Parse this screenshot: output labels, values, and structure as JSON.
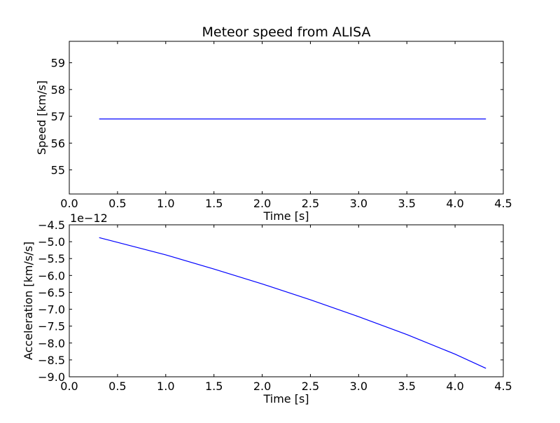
{
  "chart_data": [
    {
      "type": "line",
      "title": "Meteor speed from  ALISA",
      "xlabel": "Time [s]",
      "ylabel": "Speed [km/s]",
      "xlim": [
        0.0,
        4.5
      ],
      "ylim": [
        54.1,
        59.8
      ],
      "x_ticks": [
        "0.0",
        "0.5",
        "1.0",
        "1.5",
        "2.0",
        "2.5",
        "3.0",
        "3.5",
        "4.0",
        "4.5"
      ],
      "y_ticks": [
        "55",
        "56",
        "57",
        "58",
        "59"
      ],
      "grid": false,
      "series": [
        {
          "color": "#0000ff",
          "x": [
            0.31,
            4.32
          ],
          "values": [
            56.9,
            56.9
          ]
        }
      ]
    },
    {
      "type": "line",
      "title": "",
      "xlabel": "Time [s]",
      "ylabel": "Acceleration [km/s/s]",
      "offset_label": "1e−12",
      "xlim": [
        0.0,
        4.5
      ],
      "ylim": [
        -9.0,
        -4.5
      ],
      "x_ticks": [
        "0.0",
        "0.5",
        "1.0",
        "1.5",
        "2.0",
        "2.5",
        "3.0",
        "3.5",
        "4.0",
        "4.5"
      ],
      "y_ticks": [
        "−4.5",
        "−5.0",
        "−5.5",
        "−6.0",
        "−6.5",
        "−7.0",
        "−7.5",
        "−8.0",
        "−8.5",
        "−9.0"
      ],
      "grid": false,
      "series": [
        {
          "color": "#0000ff",
          "x": [
            0.31,
            0.5,
            1.0,
            1.5,
            2.0,
            2.5,
            3.0,
            3.5,
            4.0,
            4.32
          ],
          "values": [
            -4.88,
            -5.02,
            -5.39,
            -5.81,
            -6.25,
            -6.72,
            -7.22,
            -7.75,
            -8.33,
            -8.75
          ]
        }
      ]
    }
  ]
}
